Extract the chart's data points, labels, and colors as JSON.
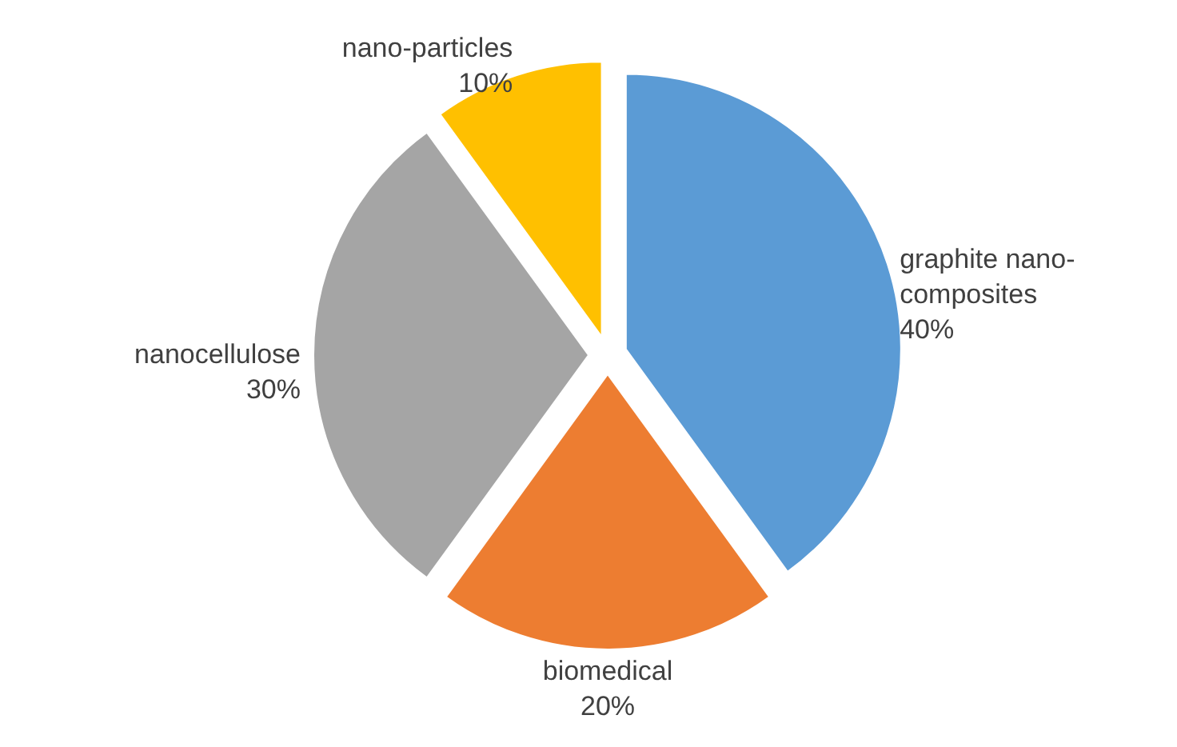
{
  "chart_data": {
    "type": "pie",
    "categories": [
      "graphite nano-composites",
      "biomedical",
      "nanocellulose",
      "nano-particles"
    ],
    "values": [
      40,
      20,
      30,
      10
    ],
    "value_labels": [
      "40%",
      "20%",
      "30%",
      "10%"
    ],
    "colors": [
      "#5b9bd5",
      "#ed7d31",
      "#a5a5a5",
      "#ffc000"
    ]
  }
}
